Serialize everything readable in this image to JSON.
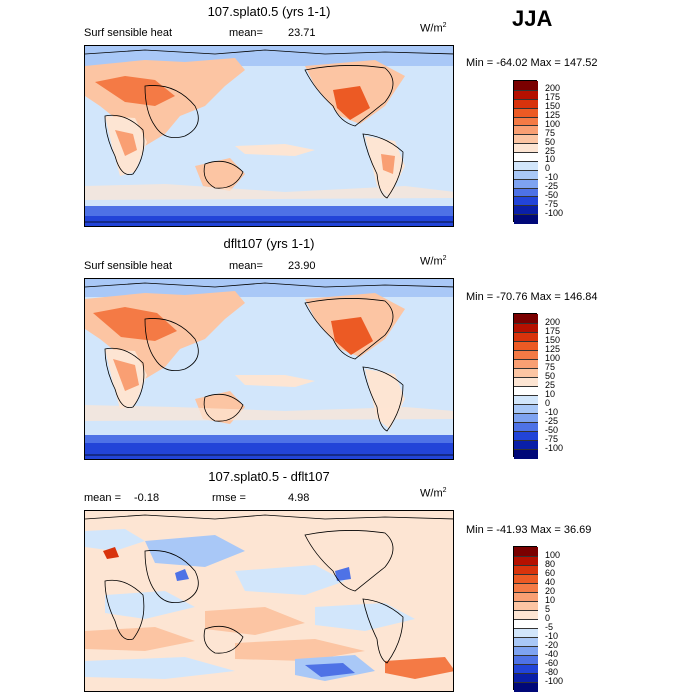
{
  "season": "JJA",
  "panels": [
    {
      "title": "107.splat0.5 (yrs 1-1)",
      "left_text": "Surf sensible heat",
      "mean_label": "mean=",
      "mean_value": "23.71",
      "units": "W/m",
      "units_sup": "2",
      "min_label": "Min =",
      "min_value": "-64.02",
      "max_label": "Max =",
      "max_value": "147.52",
      "levels": [
        "200",
        "175",
        "150",
        "125",
        "100",
        "75",
        "50",
        "25",
        "10",
        "0",
        "-10",
        "-25",
        "-50",
        "-75",
        "-100"
      ],
      "colors": [
        "#7a0000",
        "#b51000",
        "#d8330c",
        "#ec5a24",
        "#f47a45",
        "#f99f73",
        "#fcc5a3",
        "#fde5d3",
        "#ffffff",
        "#d2e6fb",
        "#a9c8f7",
        "#7ea3f1",
        "#4e72e6",
        "#2244d8",
        "#0a1fa8",
        "#000878"
      ]
    },
    {
      "title": "dflt107 (yrs 1-1)",
      "left_text": "Surf sensible heat",
      "mean_label": "mean=",
      "mean_value": "23.90",
      "units": "W/m",
      "units_sup": "2",
      "min_label": "Min =",
      "min_value": "-70.76",
      "max_label": "Max =",
      "max_value": "146.84",
      "levels": [
        "200",
        "175",
        "150",
        "125",
        "100",
        "75",
        "50",
        "25",
        "10",
        "0",
        "-10",
        "-25",
        "-50",
        "-75",
        "-100"
      ],
      "colors": [
        "#7a0000",
        "#b51000",
        "#d8330c",
        "#ec5a24",
        "#f47a45",
        "#f99f73",
        "#fcc5a3",
        "#fde5d3",
        "#ffffff",
        "#d2e6fb",
        "#a9c8f7",
        "#7ea3f1",
        "#4e72e6",
        "#2244d8",
        "#0a1fa8",
        "#000878"
      ]
    },
    {
      "title": "107.splat0.5 - dflt107",
      "left_text": "mean =",
      "left_value": "-0.18",
      "mean_label": "rmse =",
      "mean_value": "4.98",
      "units": "W/m",
      "units_sup": "2",
      "min_label": "Min =",
      "min_value": "-41.93",
      "max_label": "Max =",
      "max_value": "36.69",
      "levels": [
        "100",
        "80",
        "60",
        "40",
        "20",
        "10",
        "5",
        "0",
        "-5",
        "-10",
        "-20",
        "-40",
        "-60",
        "-80",
        "-100"
      ],
      "colors": [
        "#7a0000",
        "#b51000",
        "#d8330c",
        "#ec5a24",
        "#f47a45",
        "#f99f73",
        "#fcc5a3",
        "#fde5d3",
        "#ffffff",
        "#d2e6fb",
        "#a9c8f7",
        "#7ea3f1",
        "#4e72e6",
        "#2244d8",
        "#0a1fa8",
        "#000878"
      ]
    }
  ]
}
